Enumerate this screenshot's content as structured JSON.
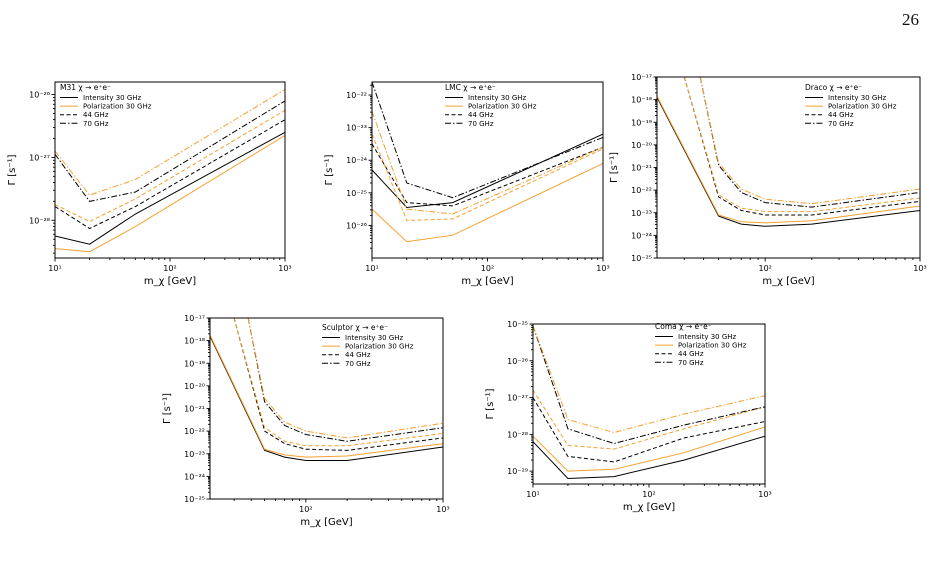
{
  "page": {
    "number": "26"
  },
  "styles": {
    "Intensity 30 GHz": {
      "color": "#000000",
      "dash": ""
    },
    "Polarization 30 GHz": {
      "color": "#f5a030",
      "dash": ""
    },
    "44 GHz": {
      "color": "#000000",
      "dash": "4 2.5"
    },
    "70 GHz": {
      "color": "#000000",
      "dash": "6 2 1.5 2"
    }
  },
  "orange": "#f5a030",
  "chart_data": [
    {
      "id": "m31",
      "type": "line",
      "legend_title": "M31 χ → e⁺e⁻",
      "xlabel": "m_χ [GeV]",
      "ylabel": "Γ [s⁻¹]",
      "xscale": "log",
      "yscale": "log",
      "xlim": [
        10,
        1000
      ],
      "ylim_exp": [
        -28.6,
        -25.8
      ],
      "xticks": [
        {
          "v": 10,
          "label": "10¹"
        },
        {
          "v": 100,
          "label": "10²"
        },
        {
          "v": 1000,
          "label": "10³"
        }
      ],
      "yticks": [
        {
          "e": -28,
          "label": "10⁻²⁸"
        },
        {
          "e": -27,
          "label": "10⁻²⁷"
        },
        {
          "e": -26,
          "label": "10⁻²⁶"
        }
      ],
      "legend_placement": "top-left",
      "series": [
        {
          "name": "Intensity 30 GHz",
          "style": "Intensity 30 GHz",
          "x": [
            10,
            20,
            50,
            1000
          ],
          "y_exp": [
            -28.25,
            -28.38,
            -27.9,
            -26.6
          ]
        },
        {
          "name": "Polarization 30 GHz",
          "style": "Polarization 30 GHz",
          "x": [
            10,
            20,
            50,
            1000
          ],
          "y_exp": [
            -28.45,
            -28.5,
            -28.1,
            -26.65
          ]
        },
        {
          "name": "44 GHz",
          "style": "44 GHz",
          "x": [
            10,
            20,
            50,
            1000
          ],
          "y_exp": [
            -27.78,
            -28.13,
            -27.78,
            -26.4
          ]
        },
        {
          "name": "",
          "style": "44 GHz",
          "color": "#f5a030",
          "x": [
            10,
            20,
            50,
            1000
          ],
          "y_exp": [
            -27.75,
            -28.02,
            -27.66,
            -26.25
          ]
        },
        {
          "name": "70 GHz",
          "style": "70 GHz",
          "x": [
            10,
            20,
            50,
            1000
          ],
          "y_exp": [
            -26.95,
            -27.7,
            -27.55,
            -26.1
          ]
        },
        {
          "name": "",
          "style": "70 GHz",
          "color": "#f5a030",
          "x": [
            10,
            20,
            50,
            1000
          ],
          "y_exp": [
            -26.9,
            -27.6,
            -27.35,
            -25.92
          ]
        }
      ]
    },
    {
      "id": "lmc",
      "type": "line",
      "legend_title": "LMC χ → e⁺e⁻",
      "xlabel": "m_χ [GeV]",
      "ylabel": "Γ [s⁻¹]",
      "xscale": "log",
      "yscale": "log",
      "xlim": [
        10,
        1000
      ],
      "ylim_exp": [
        -27.0,
        -21.6
      ],
      "xticks": [
        {
          "v": 10,
          "label": "10¹"
        },
        {
          "v": 100,
          "label": "10²"
        },
        {
          "v": 1000,
          "label": "10³"
        }
      ],
      "yticks": [
        {
          "e": -26,
          "label": "10⁻²⁶"
        },
        {
          "e": -25,
          "label": "10⁻²⁵"
        },
        {
          "e": -24,
          "label": "10⁻²⁴"
        },
        {
          "e": -23,
          "label": "10⁻²³"
        },
        {
          "e": -22,
          "label": "10⁻²²"
        }
      ],
      "legend_placement": "top-right",
      "series": [
        {
          "name": "Intensity 30 GHz",
          "style": "Intensity 30 GHz",
          "x": [
            10,
            20,
            50,
            1000
          ],
          "y_exp": [
            -24.3,
            -25.45,
            -25.3,
            -23.2
          ]
        },
        {
          "name": "Polarization 30 GHz",
          "style": "Polarization 30 GHz",
          "x": [
            10,
            20,
            50,
            1000
          ],
          "y_exp": [
            -25.5,
            -26.5,
            -26.3,
            -24.1
          ]
        },
        {
          "name": "44 GHz",
          "style": "44 GHz",
          "x": [
            10,
            20,
            50,
            1000
          ],
          "y_exp": [
            -23.5,
            -25.3,
            -25.4,
            -23.6
          ]
        },
        {
          "name": "",
          "style": "44 GHz",
          "color": "#f5a030",
          "x": [
            10,
            20,
            50,
            1000
          ],
          "y_exp": [
            -23.2,
            -25.85,
            -25.8,
            -23.65
          ]
        },
        {
          "name": "70 GHz",
          "style": "70 GHz",
          "x": [
            10,
            20,
            50,
            1000
          ],
          "y_exp": [
            -21.6,
            -24.7,
            -25.15,
            -23.3
          ]
        },
        {
          "name": "",
          "style": "70 GHz",
          "color": "#f5a030",
          "x": [
            10,
            20,
            50,
            1000
          ],
          "y_exp": [
            -22.5,
            -25.5,
            -25.65,
            -23.6
          ]
        }
      ]
    },
    {
      "id": "draco",
      "type": "line",
      "legend_title": "Draco χ → e⁺e⁻",
      "xlabel": "m_χ [GeV]",
      "ylabel": "Γ [s⁻¹]",
      "xscale": "log",
      "yscale": "log",
      "xlim": [
        20,
        1000
      ],
      "ylim_exp": [
        -25,
        -17
      ],
      "xticks": [
        {
          "v": 100,
          "label": "10²"
        },
        {
          "v": 1000,
          "label": "10³"
        }
      ],
      "yticks": [
        {
          "e": -25,
          "label": "10⁻²⁵"
        },
        {
          "e": -24,
          "label": "10⁻²⁴"
        },
        {
          "e": -23,
          "label": "10⁻²³"
        },
        {
          "e": -22,
          "label": "10⁻²²"
        },
        {
          "e": -21,
          "label": "10⁻²¹"
        },
        {
          "e": -20,
          "label": "10⁻²⁰"
        },
        {
          "e": -19,
          "label": "10⁻¹⁹"
        },
        {
          "e": -18,
          "label": "10⁻¹⁸"
        },
        {
          "e": -17,
          "label": "10⁻¹⁷"
        }
      ],
      "legend_placement": "top-right",
      "series": [
        {
          "name": "Intensity 30 GHz",
          "style": "Intensity 30 GHz",
          "x": [
            20,
            50,
            70,
            100,
            200,
            1000
          ],
          "y_exp": [
            -17.9,
            -23.15,
            -23.5,
            -23.6,
            -23.5,
            -22.9
          ]
        },
        {
          "name": "Polarization 30 GHz",
          "style": "Polarization 30 GHz",
          "x": [
            20,
            50,
            70,
            100,
            200,
            1000
          ],
          "y_exp": [
            -17.85,
            -23.1,
            -23.4,
            -23.45,
            -23.35,
            -22.7
          ]
        },
        {
          "name": "44 GHz",
          "style": "44 GHz",
          "x": [
            30,
            50,
            70,
            100,
            200,
            1000
          ],
          "y_exp": [
            -17,
            -22.3,
            -22.9,
            -23.1,
            -23.1,
            -22.5
          ]
        },
        {
          "name": "",
          "style": "44 GHz",
          "color": "#f5a030",
          "x": [
            30,
            50,
            70,
            100,
            200,
            1000
          ],
          "y_exp": [
            -17,
            -22.2,
            -22.8,
            -22.95,
            -22.95,
            -22.35
          ]
        },
        {
          "name": "70 GHz",
          "style": "70 GHz",
          "x": [
            38,
            50,
            70,
            100,
            200,
            1000
          ],
          "y_exp": [
            -17,
            -20.9,
            -22.1,
            -22.55,
            -22.75,
            -22.1
          ]
        },
        {
          "name": "",
          "style": "70 GHz",
          "color": "#f5a030",
          "x": [
            38,
            50,
            70,
            100,
            200,
            1000
          ],
          "y_exp": [
            -17,
            -20.8,
            -21.95,
            -22.4,
            -22.6,
            -21.95
          ]
        }
      ]
    },
    {
      "id": "sculptor",
      "type": "line",
      "legend_title": "Sculptor χ → e⁺e⁻",
      "xlabel": "m_χ [GeV]",
      "ylabel": "Γ [s⁻¹]",
      "xscale": "log",
      "yscale": "log",
      "xlim": [
        20,
        1000
      ],
      "ylim_exp": [
        -25,
        -17
      ],
      "xticks": [
        {
          "v": 100,
          "label": "10²"
        },
        {
          "v": 1000,
          "label": "10³"
        }
      ],
      "yticks": [
        {
          "e": -25,
          "label": "10⁻²⁵"
        },
        {
          "e": -24,
          "label": "10⁻²⁴"
        },
        {
          "e": -23,
          "label": "10⁻²³"
        },
        {
          "e": -22,
          "label": "10⁻²²"
        },
        {
          "e": -21,
          "label": "10⁻²¹"
        },
        {
          "e": -20,
          "label": "10⁻²⁰"
        },
        {
          "e": -19,
          "label": "10⁻¹⁹"
        },
        {
          "e": -18,
          "label": "10⁻¹⁸"
        },
        {
          "e": -17,
          "label": "10⁻¹⁷"
        }
      ],
      "legend_placement": "top-right",
      "series": [
        {
          "name": "Intensity 30 GHz",
          "style": "Intensity 30 GHz",
          "x": [
            20,
            50,
            70,
            100,
            200,
            1000
          ],
          "y_exp": [
            -17.8,
            -22.85,
            -23.15,
            -23.3,
            -23.3,
            -22.7
          ]
        },
        {
          "name": "Polarization 30 GHz",
          "style": "Polarization 30 GHz",
          "x": [
            20,
            50,
            70,
            100,
            200,
            1000
          ],
          "y_exp": [
            -17.75,
            -22.8,
            -23.05,
            -23.15,
            -23.1,
            -22.55
          ]
        },
        {
          "name": "44 GHz",
          "style": "44 GHz",
          "x": [
            30,
            50,
            70,
            100,
            200,
            1000
          ],
          "y_exp": [
            -17,
            -22.0,
            -22.55,
            -22.8,
            -22.85,
            -22.3
          ]
        },
        {
          "name": "",
          "style": "44 GHz",
          "color": "#f5a030",
          "x": [
            30,
            50,
            70,
            100,
            200,
            1000
          ],
          "y_exp": [
            -17,
            -21.85,
            -22.45,
            -22.65,
            -22.65,
            -22.1
          ]
        },
        {
          "name": "70 GHz",
          "style": "70 GHz",
          "x": [
            38,
            50,
            70,
            100,
            200,
            1000
          ],
          "y_exp": [
            -17,
            -20.7,
            -21.75,
            -22.15,
            -22.45,
            -21.85
          ]
        },
        {
          "name": "",
          "style": "70 GHz",
          "color": "#f5a030",
          "x": [
            38,
            50,
            70,
            100,
            200,
            1000
          ],
          "y_exp": [
            -17,
            -20.55,
            -21.6,
            -22.0,
            -22.3,
            -21.65
          ]
        }
      ]
    },
    {
      "id": "coma",
      "type": "line",
      "legend_title": "Coma χ → e⁺e⁻",
      "xlabel": "m_χ [GeV]",
      "ylabel": "Γ [s⁻¹]",
      "xscale": "log",
      "yscale": "log",
      "xlim": [
        10,
        1000
      ],
      "ylim_exp": [
        -29.35,
        -25
      ],
      "xticks": [
        {
          "v": 10,
          "label": "10¹"
        },
        {
          "v": 100,
          "label": "10²"
        },
        {
          "v": 1000,
          "label": "10³"
        }
      ],
      "yticks": [
        {
          "e": -29,
          "label": "10⁻²⁹"
        },
        {
          "e": -28,
          "label": "10⁻²⁸"
        },
        {
          "e": -27,
          "label": "10⁻²⁷"
        },
        {
          "e": -26,
          "label": "10⁻²⁶"
        },
        {
          "e": -25,
          "label": "10⁻²⁵"
        }
      ],
      "legend_placement": "top-right",
      "series": [
        {
          "name": "Intensity 30 GHz",
          "style": "Intensity 30 GHz",
          "x": [
            10,
            20,
            50,
            200,
            1000
          ],
          "y_exp": [
            -28.2,
            -29.2,
            -29.15,
            -28.7,
            -28.05
          ]
        },
        {
          "name": "Polarization 30 GHz",
          "style": "Polarization 30 GHz",
          "x": [
            10,
            20,
            50,
            200,
            1000
          ],
          "y_exp": [
            -28.05,
            -29.0,
            -28.95,
            -28.5,
            -27.8
          ]
        },
        {
          "name": "44 GHz",
          "style": "44 GHz",
          "x": [
            10,
            20,
            50,
            200,
            1000
          ],
          "y_exp": [
            -27.0,
            -28.6,
            -28.75,
            -28.1,
            -27.65
          ]
        },
        {
          "name": "",
          "style": "44 GHz",
          "color": "#f5a030",
          "x": [
            10,
            20,
            50,
            200,
            1000
          ],
          "y_exp": [
            -26.8,
            -28.3,
            -28.4,
            -27.85,
            -27.25
          ]
        },
        {
          "name": "70 GHz",
          "style": "70 GHz",
          "x": [
            10,
            20,
            50,
            200,
            1000
          ],
          "y_exp": [
            -25.05,
            -27.85,
            -28.25,
            -27.75,
            -27.25
          ]
        },
        {
          "name": "",
          "style": "70 GHz",
          "color": "#f5a030",
          "x": [
            10,
            20,
            50,
            200,
            1000
          ],
          "y_exp": [
            -25.05,
            -27.6,
            -27.95,
            -27.45,
            -26.95
          ]
        }
      ]
    }
  ]
}
